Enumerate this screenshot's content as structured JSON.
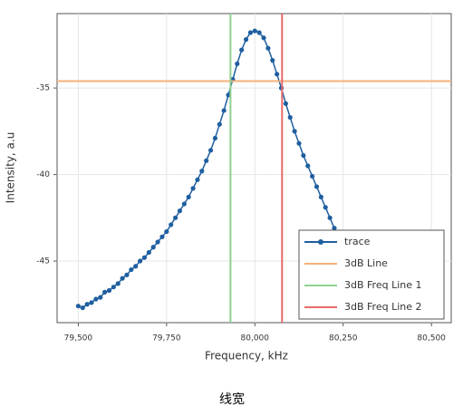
{
  "chart_data": {
    "type": "line",
    "xlabel": "Frequency, kHz",
    "ylabel": "Intensity, a.u",
    "x": [
      79500,
      79512.5,
      79525,
      79537.5,
      79550,
      79562.5,
      79575,
      79587.5,
      79600,
      79612.5,
      79625,
      79637.5,
      79650,
      79662.5,
      79675,
      79687.5,
      79700,
      79712.5,
      79725,
      79737.5,
      79750,
      79762.5,
      79775,
      79787.5,
      79800,
      79812.5,
      79825,
      79837.5,
      79850,
      79862.5,
      79875,
      79887.5,
      79900,
      79912.5,
      79925,
      79937.5,
      79950,
      79962.5,
      79975,
      79987.5,
      80000,
      80012.5,
      80025,
      80037.5,
      80050,
      80062.5,
      80075,
      80087.5,
      80100,
      80112.5,
      80125,
      80137.5,
      80150,
      80162.5,
      80175,
      80187.5,
      80200,
      80212.5,
      80225
    ],
    "series": [
      {
        "name": "trace",
        "color": "#1f5fa0",
        "values": [
          -47.6,
          -47.7,
          -47.5,
          -47.4,
          -47.2,
          -47.1,
          -46.8,
          -46.7,
          -46.5,
          -46.3,
          -46.0,
          -45.8,
          -45.5,
          -45.3,
          -45.0,
          -44.8,
          -44.5,
          -44.2,
          -43.9,
          -43.6,
          -43.3,
          -42.9,
          -42.5,
          -42.1,
          -41.7,
          -41.3,
          -40.8,
          -40.3,
          -39.8,
          -39.2,
          -38.6,
          -37.9,
          -37.1,
          -36.3,
          -35.4,
          -34.5,
          -33.6,
          -32.8,
          -32.2,
          -31.8,
          -31.7,
          -31.8,
          -32.1,
          -32.7,
          -33.4,
          -34.2,
          -35.0,
          -35.9,
          -36.7,
          -37.5,
          -38.2,
          -38.9,
          -39.5,
          -40.1,
          -40.7,
          -41.3,
          -41.9,
          -42.5,
          -43.1
        ]
      },
      {
        "name": "3dB Line",
        "color": "#f5b07a",
        "y": -34.6
      },
      {
        "name": "3dB Freq Line 1",
        "color": "#8fd18f",
        "x": 79931
      },
      {
        "name": "3dB Freq Line 2",
        "color": "#e86a6a",
        "x": 80077
      }
    ],
    "xlim": [
      79440,
      80556
    ],
    "ylim": [
      -48.56,
      -30.7
    ],
    "xticks": [
      {
        "value": 79500,
        "label": "79,500"
      },
      {
        "value": 79750,
        "label": "79,750"
      },
      {
        "value": 80000,
        "label": "80,000"
      },
      {
        "value": 80250,
        "label": "80,250"
      },
      {
        "value": 80500,
        "label": "80,500"
      }
    ],
    "yticks": [
      -35,
      -40,
      -45
    ],
    "grid": true,
    "legend": "lower right"
  },
  "caption": "线宽"
}
